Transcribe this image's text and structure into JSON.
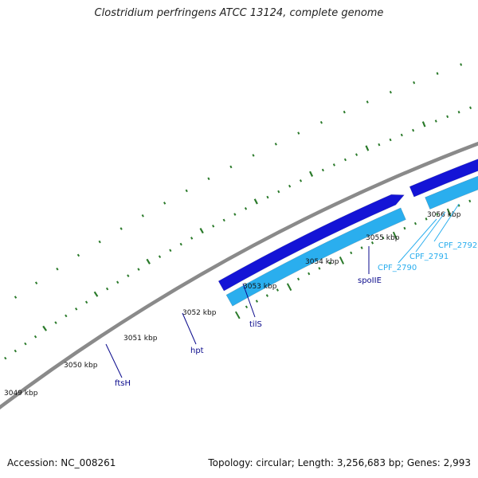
{
  "title": "Clostridium perfringens ATCC 13124, complete genome",
  "footer": {
    "accession": "Accession: NC_008261",
    "topology": "Topology: circular; Length: 3,256,683 bp; Genes: 2,993"
  },
  "colors": {
    "backbone": "#8a8a8a",
    "forward_gene": "#1414d6",
    "reverse_gene": "#2aaeee",
    "feature_olive": "#b5ad7a",
    "feature_pale": "#f3ec9e",
    "feature_orange": "#f07a10",
    "feature_green": "#4cc43c",
    "gene_label_dark": "#0a0a8c",
    "gene_label_light": "#2aaeee",
    "tick_major": "#2a7a2a",
    "tick_minor": "#2a7a2a"
  },
  "kbp_labels": [
    "3049 kbp",
    "3050 kbp",
    "3051 kbp",
    "3052 kbp",
    "3053 kbp",
    "3054 kbp",
    "3055 kbp",
    "3056 kbp"
  ],
  "gene_labels": [
    {
      "text": "ftsH",
      "style": "dark"
    },
    {
      "text": "hpt",
      "style": "dark"
    },
    {
      "text": "tilS",
      "style": "dark"
    },
    {
      "text": "spoIIE",
      "style": "dark"
    },
    {
      "text": "CPF_2790",
      "style": "light"
    },
    {
      "text": "CPF_2791",
      "style": "light"
    },
    {
      "text": "CPF_2792",
      "style": "light"
    }
  ]
}
